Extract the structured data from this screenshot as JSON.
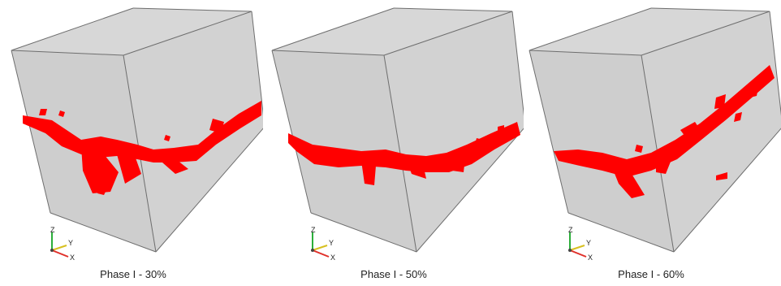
{
  "figure": {
    "panels": [
      {
        "caption": "Phase I - 30%"
      },
      {
        "caption": "Phase I - 50%"
      },
      {
        "caption": "Phase I - 60%"
      }
    ],
    "axes_triad": {
      "x": "X",
      "y": "Y",
      "z": "Z"
    },
    "colors": {
      "cube_face": "#cecece",
      "cube_face_right": "#d2d2d2",
      "cube_face_top": "#d7d7d7",
      "cube_edge": "#6e6e6e",
      "crack": "#ff0000",
      "axis_x": "#e0302a",
      "axis_y": "#d8c020",
      "axis_z": "#2cae3a"
    }
  }
}
